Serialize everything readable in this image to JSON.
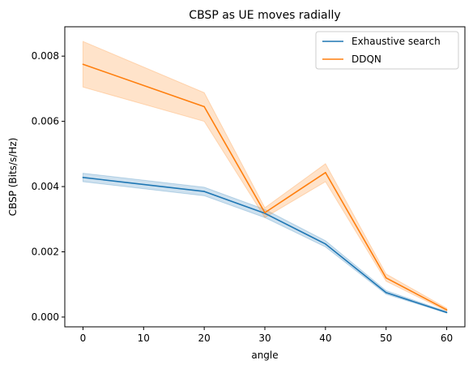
{
  "chart_data": {
    "type": "line",
    "title": "CBSP as UE moves radially",
    "xlabel": "angle",
    "ylabel": "CBSP (Bits/s/Hz)",
    "x": [
      0,
      20,
      30,
      40,
      50,
      60
    ],
    "xlim": [
      -3,
      63
    ],
    "ylim": [
      -0.0003,
      0.0089
    ],
    "xticks": [
      0,
      10,
      20,
      30,
      40,
      50,
      60
    ],
    "xtick_labels": [
      "0",
      "10",
      "20",
      "30",
      "40",
      "50",
      "60"
    ],
    "yticks": [
      0.0,
      0.002,
      0.004,
      0.006,
      0.008
    ],
    "ytick_labels": [
      "0.000",
      "0.002",
      "0.004",
      "0.006",
      "0.008"
    ],
    "grid": false,
    "legend_position": "top-right",
    "series": [
      {
        "name": "Exhaustive search",
        "color": "#1f77b4",
        "values": [
          0.00428,
          0.00385,
          0.00318,
          0.00224,
          0.00075,
          0.00014
        ],
        "lower": [
          0.00415,
          0.00372,
          0.00305,
          0.00215,
          0.0007,
          0.00012
        ],
        "upper": [
          0.00441,
          0.00398,
          0.0033,
          0.00234,
          0.00081,
          0.00017
        ]
      },
      {
        "name": "DDQN",
        "color": "#ff7f0e",
        "values": [
          0.00775,
          0.00645,
          0.0032,
          0.00443,
          0.0012,
          0.00022
        ],
        "lower": [
          0.00705,
          0.006,
          0.00305,
          0.00415,
          0.0011,
          0.00018
        ],
        "upper": [
          0.00845,
          0.00688,
          0.00335,
          0.0047,
          0.00132,
          0.00027
        ]
      }
    ]
  }
}
